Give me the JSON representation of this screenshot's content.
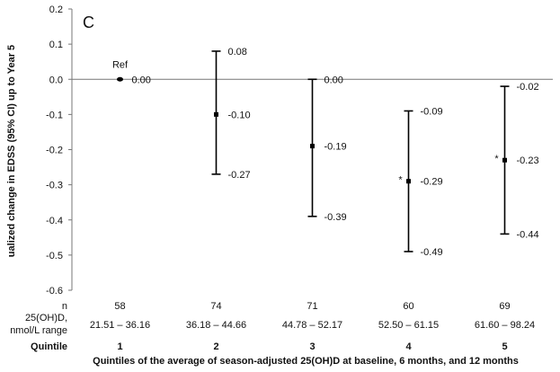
{
  "chart_data": {
    "type": "scatter",
    "panel_label": "C",
    "ylabel": "ualized change in EDSS (95% CI) up to Year 5",
    "xlabel": "Quintiles of the average of season-adjusted 25(OH)D at baseline, 6 months, and 12 months",
    "ylim": [
      -0.6,
      0.2
    ],
    "y_ticks": [
      "0.2",
      "0.1",
      "0.0",
      "-0.1",
      "-0.2",
      "-0.3",
      "-0.4",
      "-0.5",
      "-0.6"
    ],
    "categories": [
      "1",
      "2",
      "3",
      "4",
      "5"
    ],
    "points": [
      {
        "quintile": "1",
        "estimate": 0.0,
        "lower": null,
        "upper": null,
        "est_label": "0.00",
        "lower_label": "",
        "upper_label": "",
        "marker": "Ref",
        "n": "58",
        "range": "21.51 – 36.16"
      },
      {
        "quintile": "2",
        "estimate": -0.1,
        "lower": -0.27,
        "upper": 0.08,
        "est_label": "-0.10",
        "lower_label": "-0.27",
        "upper_label": "0.08",
        "marker": "",
        "n": "74",
        "range": "36.18 – 44.66"
      },
      {
        "quintile": "3",
        "estimate": -0.19,
        "lower": -0.39,
        "upper": 0.0,
        "est_label": "-0.19",
        "lower_label": "-0.39",
        "upper_label": "0.00",
        "marker": "",
        "n": "71",
        "range": "44.78 – 52.17"
      },
      {
        "quintile": "4",
        "estimate": -0.29,
        "lower": -0.49,
        "upper": -0.09,
        "est_label": "-0.29",
        "lower_label": "-0.49",
        "upper_label": "-0.09",
        "marker": "*",
        "n": "60",
        "range": "52.50 – 61.15"
      },
      {
        "quintile": "5",
        "estimate": -0.23,
        "lower": -0.44,
        "upper": -0.02,
        "est_label": "-0.23",
        "lower_label": "-0.44",
        "upper_label": "-0.02",
        "marker": "*",
        "n": "69",
        "range": "61.60 – 98.24"
      }
    ],
    "row_labels": {
      "n": "n",
      "range_line1": "25(OH)D,",
      "range_line2": "nmol/L range",
      "quintile": "Quintile"
    },
    "grid": false,
    "legend": "none"
  }
}
